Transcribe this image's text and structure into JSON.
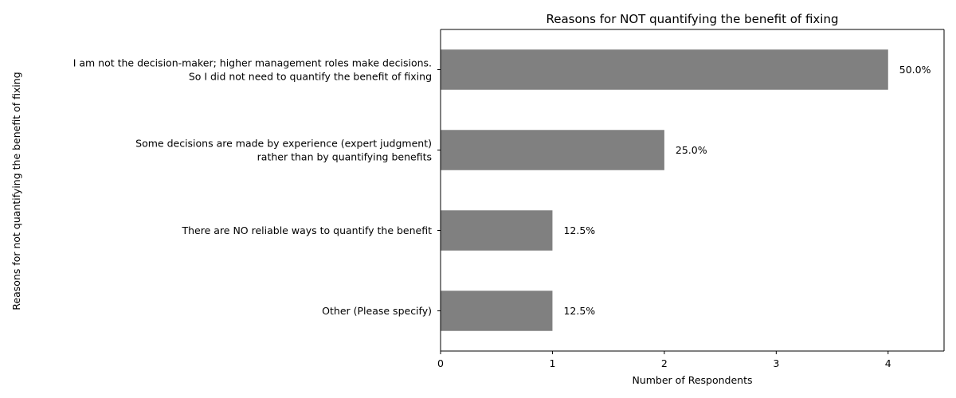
{
  "chart_data": {
    "type": "bar",
    "orientation": "horizontal",
    "title": "Reasons for NOT quantifying the benefit of fixing",
    "xlabel": "Number of Respondents",
    "ylabel": "Reasons for not quantifying the benefit of fixing",
    "xlim": [
      0,
      4.5
    ],
    "xticks": [
      0,
      1,
      2,
      3,
      4
    ],
    "grid": false,
    "bar_color": "#808080",
    "categories": [
      [
        "I am not the decision-maker; higher management roles make decisions.",
        "So I did not need to quantify the benefit of fixing"
      ],
      [
        "Some decisions are made by experience (expert judgment)",
        "rather than by quantifying benefits"
      ],
      [
        "There are NO reliable ways to quantify the benefit"
      ],
      [
        "Other (Please specify)"
      ]
    ],
    "values": [
      4,
      2,
      1,
      1
    ],
    "data_labels": [
      "50.0%",
      "25.0%",
      "12.5%",
      "12.5%"
    ]
  }
}
